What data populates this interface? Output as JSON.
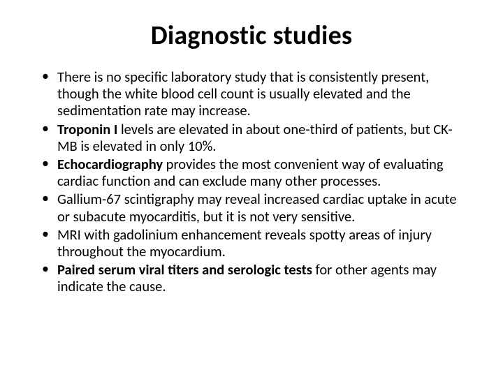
{
  "title": "Diagnostic studies",
  "bullets": [
    {
      "pre": "There is no specific laboratory study that is consistently present, though the white blood cell count is usually elevated and the sedimentation rate may increase.",
      "bold": "",
      "post": ""
    },
    {
      "pre": "",
      "bold": "Troponin I",
      "post": " levels are elevated in about one-third of patients, but CK-MB is elevated in only 10%."
    },
    {
      "pre": "",
      "bold": "Echocardiography",
      "post": " provides the most convenient way of evaluating cardiac function and can exclude many other processes."
    },
    {
      "pre": "Gallium-67 scintigraphy may reveal increased cardiac uptake in acute or subacute myocarditis, but it is not very sensitive.",
      "bold": "",
      "post": ""
    },
    {
      "pre": "MRI with gadolinium enhancement reveals spotty areas of injury throughout the myocardium.",
      "bold": "",
      "post": ""
    },
    {
      "pre": "",
      "bold": "Paired serum viral titers and serologic tests",
      "post": " for other agents may indicate the cause."
    }
  ]
}
